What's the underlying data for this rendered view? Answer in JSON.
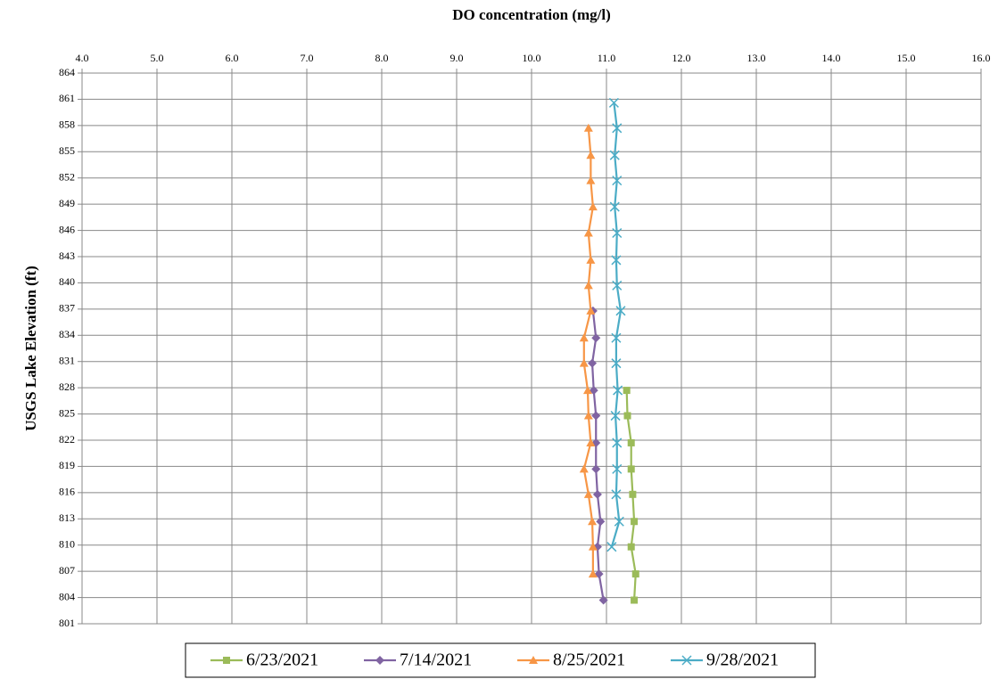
{
  "chart_data": {
    "type": "line",
    "title": "DO concentration (mg/l)",
    "y_label": "USGS Lake Elevation (ft)",
    "x_axis_position": "top",
    "xlim": [
      4,
      16
    ],
    "xticks": [
      {
        "value": 4,
        "label": "4.0"
      },
      {
        "value": 5,
        "label": "5.0"
      },
      {
        "value": 6,
        "label": "6.0"
      },
      {
        "value": 7,
        "label": "7.0"
      },
      {
        "value": 8,
        "label": "8.0"
      },
      {
        "value": 9,
        "label": "9.0"
      },
      {
        "value": 10,
        "label": "10.0"
      },
      {
        "value": 11,
        "label": "11.0"
      },
      {
        "value": 12,
        "label": "12.0"
      },
      {
        "value": 13,
        "label": "13.0"
      },
      {
        "value": 14,
        "label": "14.0"
      },
      {
        "value": 15,
        "label": "15.0"
      },
      {
        "value": 16,
        "label": "16.0"
      }
    ],
    "ylim": [
      801,
      864
    ],
    "yticks": [
      801,
      804,
      807,
      810,
      813,
      816,
      819,
      822,
      825,
      828,
      831,
      834,
      837,
      840,
      843,
      846,
      849,
      852,
      855,
      858,
      861,
      864
    ],
    "grid": true,
    "legend": "bottom",
    "series": [
      {
        "name": "6/23/2021",
        "color": "#9bbb59",
        "marker": "square",
        "x": [
          11.27,
          11.28,
          11.33,
          11.33,
          11.35,
          11.37,
          11.33,
          11.39,
          11.37
        ],
        "y": [
          827.7,
          824.8,
          821.7,
          818.7,
          815.8,
          812.7,
          809.8,
          806.7,
          803.7
        ]
      },
      {
        "name": "7/14/2021",
        "color": "#8064a2",
        "marker": "diamond",
        "x": [
          10.82,
          10.86,
          10.81,
          10.83,
          10.86,
          10.86,
          10.86,
          10.88,
          10.92,
          10.88,
          10.9,
          10.96
        ],
        "y": [
          836.8,
          833.7,
          830.8,
          827.7,
          824.8,
          821.7,
          818.7,
          815.8,
          812.7,
          809.8,
          806.7,
          803.7
        ]
      },
      {
        "name": "8/25/2021",
        "color": "#f79646",
        "marker": "triangle",
        "x": [
          10.76,
          10.79,
          10.79,
          10.82,
          10.76,
          10.79,
          10.76,
          10.79,
          10.7,
          10.7,
          10.75,
          10.76,
          10.79,
          10.7,
          10.76,
          10.81,
          10.82,
          10.82
        ],
        "y": [
          857.7,
          854.6,
          851.7,
          848.7,
          845.7,
          842.6,
          839.7,
          836.8,
          833.7,
          830.8,
          827.7,
          824.8,
          821.7,
          818.7,
          815.8,
          812.7,
          809.8,
          806.7
        ]
      },
      {
        "name": "9/28/2021",
        "color": "#4bacc6",
        "marker": "x",
        "x": [
          11.1,
          11.14,
          11.11,
          11.14,
          11.11,
          11.14,
          11.13,
          11.14,
          11.19,
          11.13,
          11.13,
          11.15,
          11.12,
          11.14,
          11.14,
          11.13,
          11.17,
          11.07
        ],
        "y": [
          860.6,
          857.7,
          854.6,
          851.7,
          848.7,
          845.7,
          842.6,
          839.7,
          836.8,
          833.7,
          830.8,
          827.7,
          824.8,
          821.7,
          818.7,
          815.8,
          812.7,
          809.8
        ]
      }
    ]
  }
}
